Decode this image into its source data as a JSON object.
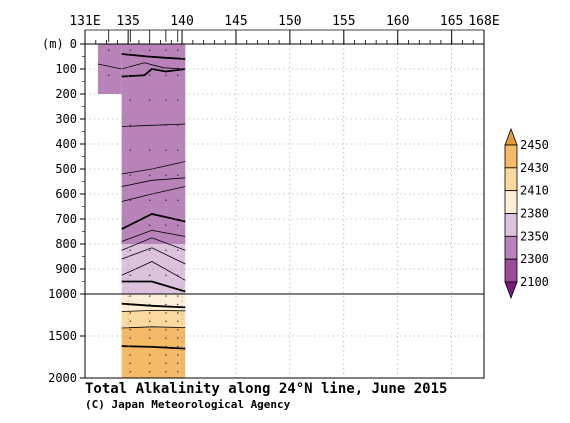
{
  "chart_data": {
    "type": "contour-section",
    "title": "Total Alkalinity along 24°N line, June 2015",
    "credit": "(C) Japan Meteorological Agency",
    "x_axis": {
      "unit_suffix": "E",
      "range": [
        131,
        168
      ],
      "ticks": [
        {
          "value": 131,
          "label": "131E"
        },
        {
          "value": 135,
          "label": "135"
        },
        {
          "value": 140,
          "label": "140"
        },
        {
          "value": 145,
          "label": "145"
        },
        {
          "value": 150,
          "label": "150"
        },
        {
          "value": 155,
          "label": "155"
        },
        {
          "value": 160,
          "label": "160"
        },
        {
          "value": 165,
          "label": "165"
        },
        {
          "value": 168,
          "label": "168E"
        }
      ],
      "minor_step": 1
    },
    "y_axis": {
      "unit_label": "(m)",
      "upper": {
        "range": [
          0,
          1000
        ],
        "ticks": [
          {
            "value": 0,
            "label": "0"
          },
          {
            "value": 100,
            "label": "100"
          },
          {
            "value": 200,
            "label": "200"
          },
          {
            "value": 300,
            "label": "300"
          },
          {
            "value": 400,
            "label": "400"
          },
          {
            "value": 500,
            "label": "500"
          },
          {
            "value": 600,
            "label": "600"
          },
          {
            "value": 700,
            "label": "700"
          },
          {
            "value": 800,
            "label": "800"
          },
          {
            "value": 900,
            "label": "900"
          },
          {
            "value": 1000,
            "label": "1000"
          }
        ]
      },
      "lower": {
        "range": [
          1000,
          2000
        ],
        "ticks": [
          {
            "value": 1500,
            "label": "1500"
          },
          {
            "value": 2000,
            "label": "2000"
          }
        ]
      },
      "gridlines": "dotted"
    },
    "colorbar": {
      "levels": [
        2100,
        2300,
        2350,
        2380,
        2410,
        2430,
        2450
      ],
      "labels": [
        "2100",
        "2300",
        "2350",
        "2380",
        "2410",
        "2430",
        "2450"
      ],
      "colors": [
        "#7b1a7e",
        "#9b4a9b",
        "#b983b9",
        "#dcc2dc",
        "#fdeed6",
        "#fbd9a0",
        "#f5b967",
        "#e39b3a"
      ]
    },
    "stations_lon": [
      133.2,
      135.2,
      137.0,
      138.5,
      139.6
    ],
    "fill_regions": [
      {
        "lon": [
          132.2,
          134.4
        ],
        "depth": [
          0,
          200
        ],
        "value": 2300
      },
      {
        "lon": [
          134.4,
          140.3
        ],
        "depth": [
          0,
          700
        ],
        "value": 2300
      },
      {
        "lon": [
          134.4,
          140.3
        ],
        "depth": [
          700,
          800
        ],
        "value": 2300
      },
      {
        "lon": [
          134.4,
          140.3
        ],
        "depth": [
          800,
          1000
        ],
        "value": 2350
      },
      {
        "lon": [
          134.4,
          140.3
        ],
        "depth": [
          1000,
          1200
        ],
        "value": 2380
      },
      {
        "lon": [
          134.4,
          140.3
        ],
        "depth": [
          1200,
          1400
        ],
        "value": 2410
      },
      {
        "lon": [
          134.4,
          140.3
        ],
        "depth": [
          1400,
          2000
        ],
        "value": 2430
      }
    ],
    "contours": [
      {
        "bold": true,
        "points": [
          [
            134.4,
            40
          ],
          [
            136.8,
            50
          ],
          [
            138.5,
            55
          ],
          [
            140.3,
            60
          ]
        ]
      },
      {
        "bold": false,
        "points": [
          [
            132.2,
            80
          ],
          [
            134.4,
            100
          ],
          [
            136.5,
            75
          ],
          [
            138.3,
            95
          ],
          [
            140.3,
            100
          ]
        ]
      },
      {
        "bold": true,
        "points": [
          [
            134.4,
            130
          ],
          [
            136.5,
            125
          ],
          [
            137.2,
            100
          ],
          [
            138.5,
            110
          ],
          [
            140.3,
            100
          ]
        ]
      },
      {
        "bold": false,
        "points": [
          [
            134.4,
            330
          ],
          [
            137.2,
            325
          ],
          [
            140.3,
            320
          ]
        ]
      },
      {
        "bold": false,
        "points": [
          [
            134.4,
            520
          ],
          [
            137.2,
            500
          ],
          [
            140.3,
            470
          ]
        ]
      },
      {
        "bold": false,
        "points": [
          [
            134.4,
            570
          ],
          [
            137.2,
            545
          ],
          [
            140.3,
            535
          ]
        ]
      },
      {
        "bold": false,
        "points": [
          [
            134.4,
            630
          ],
          [
            137.2,
            600
          ],
          [
            140.3,
            570
          ]
        ]
      },
      {
        "bold": true,
        "points": [
          [
            134.4,
            740
          ],
          [
            137.2,
            680
          ],
          [
            140.3,
            710
          ]
        ]
      },
      {
        "bold": false,
        "points": [
          [
            134.4,
            790
          ],
          [
            137.2,
            745
          ],
          [
            140.3,
            770
          ]
        ]
      },
      {
        "bold": false,
        "points": [
          [
            134.4,
            825
          ],
          [
            137.2,
            775
          ],
          [
            140.3,
            825
          ]
        ]
      },
      {
        "bold": false,
        "points": [
          [
            134.4,
            860
          ],
          [
            137.2,
            815
          ],
          [
            140.3,
            880
          ]
        ]
      },
      {
        "bold": false,
        "points": [
          [
            134.4,
            925
          ],
          [
            137.2,
            870
          ],
          [
            140.3,
            945
          ]
        ]
      },
      {
        "bold": true,
        "points": [
          [
            134.4,
            950
          ],
          [
            137.2,
            950
          ],
          [
            140.3,
            990
          ]
        ]
      },
      {
        "bold": true,
        "points": [
          [
            134.4,
            1115
          ],
          [
            137.2,
            1140
          ],
          [
            140.3,
            1160
          ]
        ]
      },
      {
        "bold": false,
        "points": [
          [
            134.4,
            1210
          ],
          [
            137.2,
            1195
          ],
          [
            140.3,
            1200
          ]
        ]
      },
      {
        "bold": false,
        "points": [
          [
            134.4,
            1405
          ],
          [
            137.2,
            1390
          ],
          [
            140.3,
            1400
          ]
        ]
      },
      {
        "bold": true,
        "points": [
          [
            134.4,
            1620
          ],
          [
            137.2,
            1630
          ],
          [
            140.3,
            1650
          ]
        ]
      }
    ]
  }
}
